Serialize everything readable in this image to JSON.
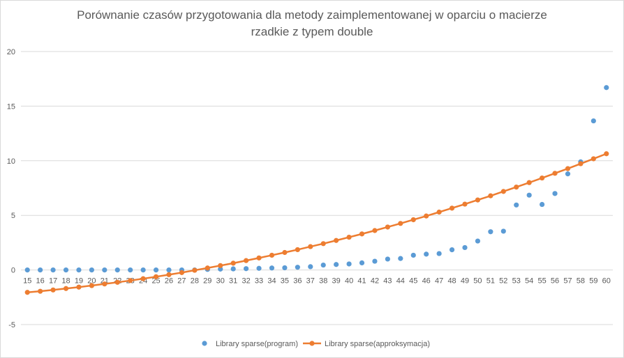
{
  "chart_data": {
    "type": "scatter",
    "title_line1": "Porównanie czasów przygotowania dla metody zaimplementowanej w oparciu o macierze",
    "title_line2": "rzadkie z typem double",
    "xlabel": "",
    "ylabel": "",
    "ylim": [
      -5,
      20
    ],
    "yticks": [
      -5,
      0,
      5,
      10,
      15,
      20
    ],
    "grid": true,
    "legend_position": "bottom",
    "categories": [
      15,
      16,
      17,
      18,
      19,
      20,
      21,
      22,
      23,
      24,
      25,
      26,
      27,
      28,
      29,
      30,
      31,
      32,
      33,
      34,
      35,
      36,
      37,
      38,
      39,
      40,
      41,
      42,
      43,
      44,
      45,
      46,
      47,
      48,
      49,
      50,
      51,
      52,
      53,
      54,
      55,
      56,
      57,
      58,
      59,
      60
    ],
    "series": [
      {
        "name": "Library sparse(program)",
        "style": "markers",
        "color": "#5b9bd5",
        "values": [
          0.0,
          0.0,
          0.0,
          0.0,
          0.0,
          0.0,
          0.0,
          0.0,
          0.0,
          0.0,
          0.0,
          0.0,
          0.0,
          0.0,
          0.05,
          0.08,
          0.1,
          0.12,
          0.15,
          0.18,
          0.2,
          0.25,
          0.3,
          0.45,
          0.5,
          0.55,
          0.65,
          0.8,
          1.0,
          1.05,
          1.35,
          1.45,
          1.5,
          1.85,
          2.05,
          2.65,
          3.5,
          3.55,
          5.95,
          6.85,
          6.0,
          7.0,
          8.8,
          9.9,
          13.65,
          16.7
        ]
      },
      {
        "name": "Library sparse(approksymacja)",
        "style": "line-markers",
        "color": "#ed7d31",
        "values": [
          -2.05,
          -1.95,
          -1.83,
          -1.7,
          -1.57,
          -1.43,
          -1.28,
          -1.13,
          -0.97,
          -0.8,
          -0.62,
          -0.43,
          -0.24,
          -0.03,
          0.18,
          0.4,
          0.62,
          0.86,
          1.1,
          1.35,
          1.6,
          1.86,
          2.14,
          2.41,
          2.7,
          3.0,
          3.3,
          3.61,
          3.93,
          4.26,
          4.6,
          4.94,
          5.3,
          5.66,
          6.03,
          6.41,
          6.79,
          7.19,
          7.59,
          8.0,
          8.42,
          8.85,
          9.28,
          9.73,
          10.18,
          10.64
        ]
      }
    ]
  }
}
